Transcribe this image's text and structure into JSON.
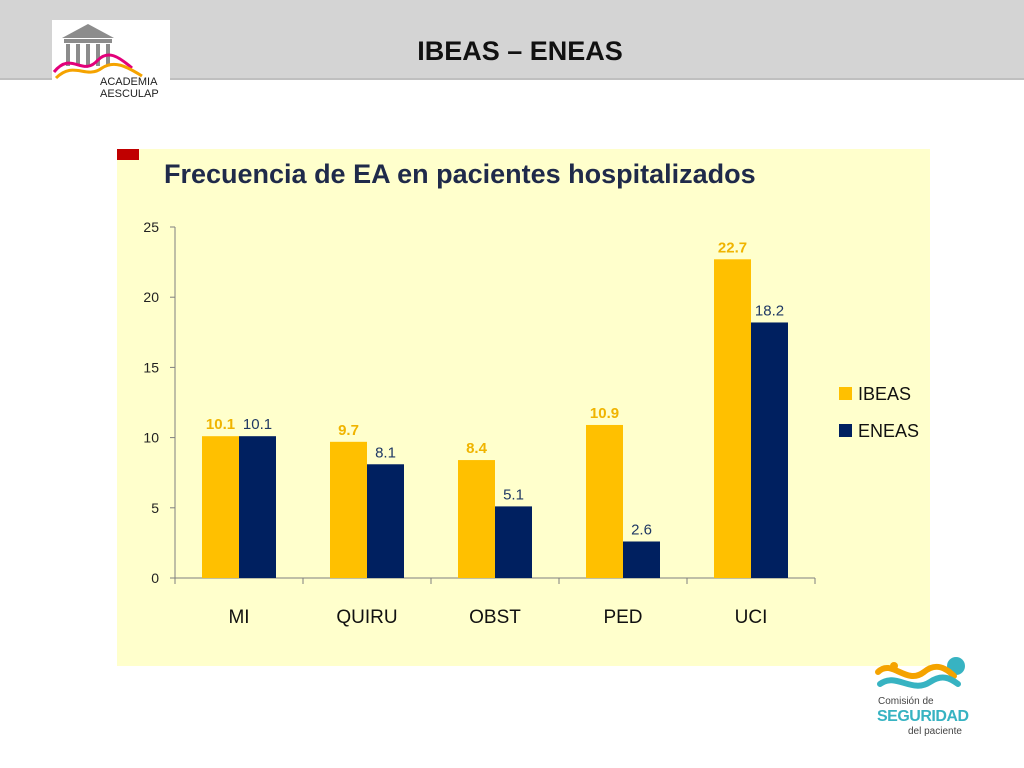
{
  "header": {
    "title": "IBEAS – ENEAS",
    "bar_color": "#d4d4d4"
  },
  "logo_left": {
    "text": "ACADEMIA\nAESCULAP",
    "icon": "temple-icon"
  },
  "logo_right": {
    "line1": "Comisión de",
    "line2": "SEGURIDAD",
    "line3": "del paciente",
    "icon": "figure-swoosh-icon"
  },
  "chart_data": {
    "type": "bar",
    "title": "Frecuencia de EA en pacientes hospitalizados",
    "categories": [
      "MI",
      "QUIRU",
      "OBST",
      "PED",
      "UCI"
    ],
    "series": [
      {
        "name": "IBEAS",
        "values": [
          10.1,
          9.7,
          8.4,
          10.9,
          22.7
        ],
        "color": "#ffc000",
        "label_color": "#f0b400"
      },
      {
        "name": "ENEAS",
        "values": [
          10.1,
          8.1,
          5.1,
          2.6,
          18.2
        ],
        "color": "#002060",
        "label_color": "#1f3864"
      }
    ],
    "yticks": [
      "0",
      "5",
      "10",
      "15",
      "20",
      "25"
    ],
    "ylim": [
      0,
      25
    ],
    "legend_position": "right",
    "grid": false,
    "background": "#ffffcc",
    "accent": "#c00000"
  }
}
